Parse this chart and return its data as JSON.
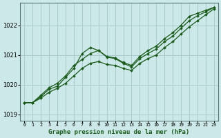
{
  "title": "Graphe pression niveau de la mer (hPa)",
  "background_color": "#cce8e8",
  "grid_color": "#aacccc",
  "line_color": "#1a5c1a",
  "ylim": [
    1018.8,
    1022.75
  ],
  "yticks": [
    1019,
    1020,
    1021,
    1022
  ],
  "x_labels": [
    "0",
    "1",
    "2",
    "3",
    "4",
    "5",
    "6",
    "7",
    "8",
    "9",
    "10",
    "11",
    "12",
    "13",
    "14",
    "15",
    "16",
    "17",
    "18",
    "19",
    "20",
    "21",
    "22",
    "23"
  ],
  "series": [
    [
      1019.4,
      1019.4,
      1019.6,
      1019.85,
      1019.95,
      1020.25,
      1020.55,
      1021.05,
      1021.25,
      1021.15,
      1020.95,
      1020.9,
      1020.75,
      1020.65,
      1020.95,
      1021.15,
      1021.3,
      1021.55,
      1021.75,
      1022.0,
      1022.3,
      1022.4,
      1022.5,
      1022.6
    ],
    [
      1019.4,
      1019.4,
      1019.65,
      1019.9,
      1020.05,
      1020.3,
      1020.65,
      1020.85,
      1021.05,
      1021.15,
      1020.93,
      1020.88,
      1020.72,
      1020.6,
      1020.88,
      1021.05,
      1021.2,
      1021.45,
      1021.63,
      1021.9,
      1022.15,
      1022.32,
      1022.45,
      1022.6
    ],
    [
      1019.4,
      1019.4,
      1019.55,
      1019.75,
      1019.88,
      1020.05,
      1020.3,
      1020.55,
      1020.72,
      1020.78,
      1020.68,
      1020.65,
      1020.55,
      1020.48,
      1020.72,
      1020.88,
      1021.0,
      1021.25,
      1021.45,
      1021.7,
      1021.95,
      1022.15,
      1022.35,
      1022.55
    ]
  ]
}
